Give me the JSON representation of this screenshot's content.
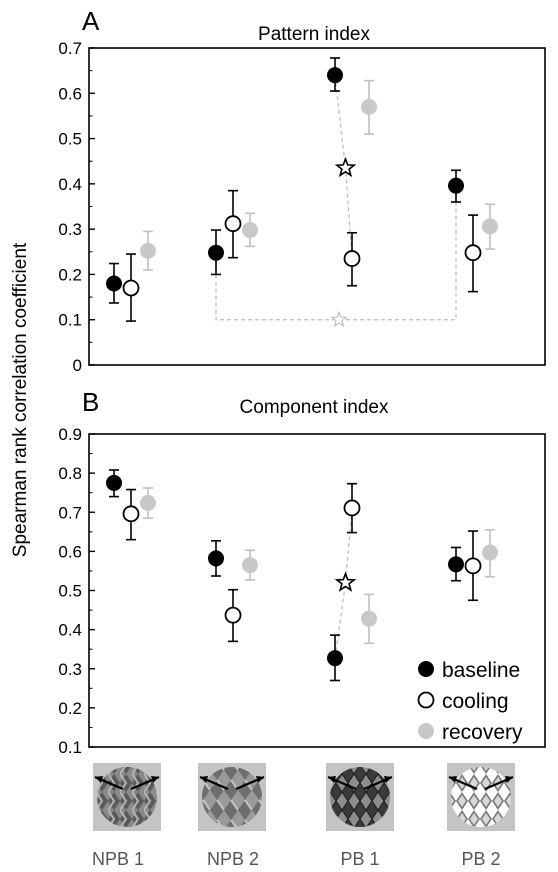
{
  "figure": {
    "ylabel": "Spearman rank correlation coefficient",
    "categories": [
      "NPB 1",
      "NPB 2",
      "PB 1",
      "PB 2"
    ],
    "legend": {
      "position": "bottom-right of panel B",
      "items": [
        {
          "label": "baseline",
          "style": "filled-black"
        },
        {
          "label": "cooling",
          "style": "open-circle"
        },
        {
          "label": "recovery",
          "style": "filled-gray"
        }
      ]
    },
    "stimulus_icons": [
      {
        "category": "NPB 1",
        "icon": "plaid-stimulus-icon"
      },
      {
        "category": "NPB 2",
        "icon": "plaid-stimulus-icon"
      },
      {
        "category": "PB 1",
        "icon": "plaid-stimulus-icon"
      },
      {
        "category": "PB 2",
        "icon": "plaid-stimulus-icon"
      }
    ],
    "colors": {
      "baseline": "#000000",
      "cooling": "#ffffff",
      "recovery": "#c8c8c8",
      "significance": "#bbbbbb"
    }
  },
  "chart_data": [
    {
      "panel": "A",
      "type": "scatter",
      "title": "Pattern index",
      "ylim": [
        0,
        0.7
      ],
      "yticks": [
        "0",
        "0.1",
        "0.2",
        "0.3",
        "0.4",
        "0.5",
        "0.6",
        "0.7"
      ],
      "categories": [
        "NPB 1",
        "NPB 2",
        "PB 1",
        "PB 2"
      ],
      "grid": false,
      "series": [
        {
          "name": "baseline",
          "values": [
            0.18,
            0.248,
            0.64,
            0.396
          ],
          "err_low": [
            0.137,
            0.2,
            0.605,
            0.36
          ],
          "err_high": [
            0.224,
            0.298,
            0.678,
            0.43
          ]
        },
        {
          "name": "cooling",
          "values": [
            0.17,
            0.312,
            0.235,
            0.248
          ],
          "err_low": [
            0.097,
            0.237,
            0.175,
            0.162
          ],
          "err_high": [
            0.245,
            0.385,
            0.292,
            0.331
          ]
        },
        {
          "name": "recovery",
          "values": [
            0.252,
            0.298,
            0.57,
            0.306
          ],
          "err_low": [
            0.21,
            0.262,
            0.51,
            0.256
          ],
          "err_high": [
            0.295,
            0.335,
            0.628,
            0.355
          ]
        }
      ],
      "annotations": [
        {
          "type": "significance-star",
          "between": [
            "PB 1 baseline",
            "PB 1 cooling"
          ],
          "value": 0.435
        },
        {
          "type": "significance-bracket",
          "between": [
            "NPB 2 baseline",
            "PB 2 baseline"
          ],
          "value": 0.1
        }
      ]
    },
    {
      "panel": "B",
      "type": "scatter",
      "title": "Component index",
      "ylim": [
        0.1,
        0.9
      ],
      "yticks": [
        "0.1",
        "0.2",
        "0.3",
        "0.4",
        "0.5",
        "0.6",
        "0.7",
        "0.8",
        "0.9"
      ],
      "categories": [
        "NPB 1",
        "NPB 2",
        "PB 1",
        "PB 2"
      ],
      "grid": false,
      "series": [
        {
          "name": "baseline",
          "values": [
            0.775,
            0.582,
            0.327,
            0.567
          ],
          "err_low": [
            0.74,
            0.537,
            0.27,
            0.525
          ],
          "err_high": [
            0.808,
            0.627,
            0.386,
            0.61
          ]
        },
        {
          "name": "cooling",
          "values": [
            0.696,
            0.437,
            0.711,
            0.563
          ],
          "err_low": [
            0.63,
            0.37,
            0.648,
            0.475
          ],
          "err_high": [
            0.758,
            0.502,
            0.773,
            0.652
          ]
        },
        {
          "name": "recovery",
          "values": [
            0.724,
            0.565,
            0.428,
            0.597
          ],
          "err_low": [
            0.685,
            0.527,
            0.365,
            0.535
          ],
          "err_high": [
            0.762,
            0.603,
            0.49,
            0.655
          ]
        }
      ],
      "annotations": [
        {
          "type": "significance-star",
          "between": [
            "PB 1 baseline",
            "PB 1 cooling"
          ],
          "value": 0.52
        }
      ]
    }
  ],
  "panel_labels": [
    "A",
    "B"
  ]
}
